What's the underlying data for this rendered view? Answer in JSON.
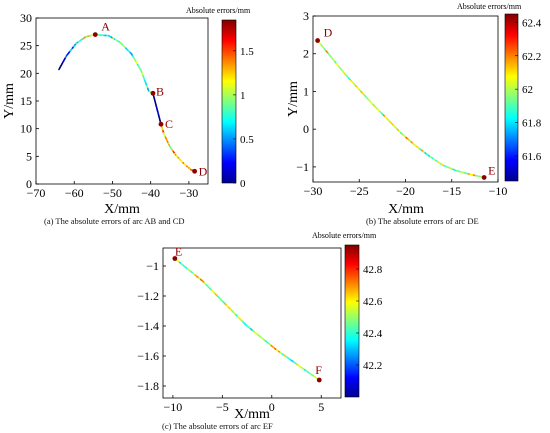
{
  "chart_data": [
    {
      "type": "line",
      "title": "",
      "xlabel": "X/mm",
      "ylabel": "Y/mm",
      "xlim": [
        -70,
        -25
      ],
      "ylim": [
        0,
        30
      ],
      "xticks": [
        -70,
        -60,
        -50,
        -40,
        -30
      ],
      "yticks": [
        0,
        5,
        10,
        15,
        20,
        25,
        30
      ],
      "xtick_labels": [
        "−70",
        "−60",
        "−50",
        "−40",
        "−30"
      ],
      "ytick_labels": [
        "0",
        "5",
        "10",
        "15",
        "20",
        "25",
        "30"
      ],
      "grid": false,
      "series": [
        {
          "points": [
            [
              -64,
              20.7
            ],
            [
              -62,
              23.2
            ],
            [
              -59.5,
              25.4
            ],
            [
              -57,
              26.6
            ],
            [
              -54.5,
              27.0
            ],
            [
              -51,
              26.8
            ],
            [
              -48,
              25.6
            ],
            [
              -45,
              23.5
            ],
            [
              -42.5,
              20.5
            ],
            [
              -40.5,
              16.8
            ],
            [
              -39.4,
              16.4
            ]
          ],
          "errors": [
            0.0,
            0.25,
            0.7,
            1.1,
            1.0,
            0.7,
            0.9,
            0.8,
            0.9,
            0.75,
            0.6
          ]
        },
        {
          "points": [
            [
              -39.4,
              16.4
            ],
            [
              -38.2,
              13.2
            ],
            [
              -37.3,
              10.8
            ]
          ],
          "errors": [
            0.05,
            0.0,
            0.05
          ]
        },
        {
          "points": [
            [
              -37.3,
              10.8
            ],
            [
              -36.5,
              9.0
            ],
            [
              -35,
              6.8
            ],
            [
              -33.5,
              5.3
            ],
            [
              -31.5,
              3.8
            ],
            [
              -29.5,
              2.6
            ],
            [
              -28.5,
              2.3
            ]
          ],
          "errors": [
            1.2,
            1.35,
            1.1,
            1.4,
            1.3,
            1.5,
            1.6
          ]
        }
      ],
      "points": [
        {
          "label": "A",
          "x": -54.5,
          "y": 27.0
        },
        {
          "label": "B",
          "x": -39.4,
          "y": 16.4
        },
        {
          "label": "C",
          "x": -37.3,
          "y": 10.8
        },
        {
          "label": "D",
          "x": -28.5,
          "y": 2.3
        }
      ],
      "colorbar": {
        "title": "Absolute errors/mm",
        "min": 0,
        "max": 1.85,
        "ticks": [
          0,
          0.5,
          1,
          1.5
        ],
        "tick_labels": [
          "0",
          "0.5",
          "1",
          "1.5"
        ]
      },
      "caption": "(a) The absolute errors of arc AB and CD"
    },
    {
      "type": "line",
      "title": "",
      "xlabel": "X/mm",
      "ylabel": "Y/mm",
      "xlim": [
        -30,
        -10
      ],
      "ylim": [
        -1.4,
        3
      ],
      "xticks": [
        -30,
        -25,
        -20,
        -15,
        -10
      ],
      "yticks": [
        -1,
        0,
        1,
        2,
        3
      ],
      "xtick_labels": [
        "−30",
        "−25",
        "−20",
        "−15",
        "−10"
      ],
      "ytick_labels": [
        "−1",
        "0",
        "1",
        "2",
        "3"
      ],
      "grid": false,
      "series": [
        {
          "points": [
            [
              -29.5,
              2.35
            ],
            [
              -28,
              1.9
            ],
            [
              -26.5,
              1.45
            ],
            [
              -25,
              1.05
            ],
            [
              -23.5,
              0.65
            ],
            [
              -22,
              0.28
            ],
            [
              -20.5,
              -0.1
            ],
            [
              -19,
              -0.42
            ],
            [
              -17.5,
              -0.7
            ],
            [
              -16,
              -0.95
            ],
            [
              -14.5,
              -1.1
            ],
            [
              -13,
              -1.2
            ],
            [
              -11.5,
              -1.28
            ]
          ],
          "errors": [
            62.0,
            62.1,
            61.95,
            62.0,
            61.9,
            62.05,
            62.0,
            62.15,
            61.9,
            62.0,
            61.95,
            62.1,
            62.0
          ]
        }
      ],
      "points": [
        {
          "label": "D",
          "x": -29.5,
          "y": 2.35
        },
        {
          "label": "E",
          "x": -11.5,
          "y": -1.28
        }
      ],
      "colorbar": {
        "title": "Absolute errors/mm",
        "min": 61.45,
        "max": 62.45,
        "ticks": [
          61.6,
          61.8,
          62,
          62.2,
          62.4
        ],
        "tick_labels": [
          "61.6",
          "61.8",
          "62",
          "62.2",
          "62.4"
        ]
      },
      "caption": "(b) The absolute errors of arc DE"
    },
    {
      "type": "line",
      "title": "",
      "xlabel": "X/mm",
      "ylabel": "",
      "xlim": [
        -11,
        7
      ],
      "ylim": [
        -1.88,
        -0.88
      ],
      "xticks": [
        -10,
        -5,
        0,
        5
      ],
      "yticks": [
        -1,
        -1.2,
        -1.4,
        -1.6,
        -1.8
      ],
      "xtick_labels": [
        "−10",
        "−5",
        "0",
        "5"
      ],
      "ytick_labels": [
        "−1",
        "−1.2",
        "−1.4",
        "−1.6",
        "−1.8"
      ],
      "grid": false,
      "series": [
        {
          "points": [
            [
              -9.8,
              -0.95
            ],
            [
              -8.5,
              -1.02
            ],
            [
              -7,
              -1.1
            ],
            [
              -5.5,
              -1.2
            ],
            [
              -4,
              -1.3
            ],
            [
              -2.5,
              -1.4
            ],
            [
              -1,
              -1.48
            ],
            [
              0.5,
              -1.56
            ],
            [
              2,
              -1.63
            ],
            [
              3.5,
              -1.7
            ],
            [
              4.8,
              -1.76
            ]
          ],
          "errors": [
            42.5,
            42.45,
            42.6,
            42.5,
            42.55,
            42.4,
            42.5,
            42.6,
            42.45,
            42.5,
            42.55
          ]
        }
      ],
      "points": [
        {
          "label": "E",
          "x": -9.8,
          "y": -0.95
        },
        {
          "label": "F",
          "x": 4.8,
          "y": -1.76
        }
      ],
      "colorbar": {
        "title": "Absolute errors/mm",
        "min": 42.0,
        "max": 42.95,
        "ticks": [
          42.2,
          42.4,
          42.6,
          42.8
        ],
        "tick_labels": [
          "42.2",
          "42.4",
          "42.6",
          "42.8"
        ]
      },
      "caption": "(c) The absolute errors of arc EF"
    }
  ]
}
